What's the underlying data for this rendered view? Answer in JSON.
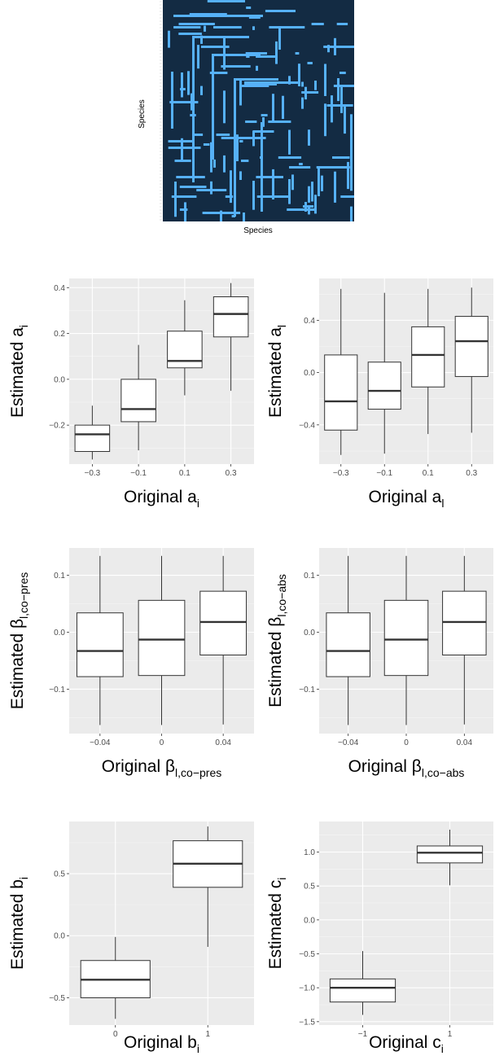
{
  "heatmap": {
    "xlabel": "Species",
    "ylabel": "Species",
    "background_color": "#132B43",
    "cell_color": "#56B1F7"
  },
  "chart_data": [
    {
      "type": "boxplot",
      "xlabel": "Original a",
      "xlabel_sub": "i",
      "ylabel": "Estimated a",
      "ylabel_sub": "i",
      "categories": [
        "−0.3",
        "−0.1",
        "0.1",
        "0.3"
      ],
      "ylim": [
        -0.37,
        0.44
      ],
      "yticks": [
        -0.2,
        0.0,
        0.2,
        0.4
      ],
      "ytick_labels": [
        "−0.2",
        "0.0",
        "0.2",
        "0.4"
      ],
      "boxes": [
        {
          "min": -0.35,
          "q1": -0.315,
          "median": -0.24,
          "q3": -0.2,
          "max": -0.115
        },
        {
          "min": -0.31,
          "q1": -0.185,
          "median": -0.13,
          "q3": 0.0,
          "max": 0.15
        },
        {
          "min": -0.07,
          "q1": 0.05,
          "median": 0.08,
          "q3": 0.21,
          "max": 0.345
        },
        {
          "min": -0.05,
          "q1": 0.185,
          "median": 0.285,
          "q3": 0.36,
          "max": 0.42
        }
      ]
    },
    {
      "type": "boxplot",
      "xlabel": "Original a",
      "xlabel_sub": "l",
      "ylabel": "Estimated a",
      "ylabel_sub": "l",
      "categories": [
        "−0.3",
        "−0.1",
        "0.1",
        "0.3"
      ],
      "ylim": [
        -0.7,
        0.72
      ],
      "yticks": [
        -0.4,
        0.0,
        0.4
      ],
      "ytick_labels": [
        "−0.4",
        "0.0",
        "0.4"
      ],
      "boxes": [
        {
          "min": -0.63,
          "q1": -0.44,
          "median": -0.22,
          "q3": 0.135,
          "max": 0.64
        },
        {
          "min": -0.62,
          "q1": -0.28,
          "median": -0.14,
          "q3": 0.08,
          "max": 0.61
        },
        {
          "min": -0.47,
          "q1": -0.11,
          "median": 0.135,
          "q3": 0.35,
          "max": 0.64
        },
        {
          "min": -0.46,
          "q1": -0.03,
          "median": 0.24,
          "q3": 0.43,
          "max": 0.65
        }
      ]
    },
    {
      "type": "boxplot",
      "xlabel": "Original β",
      "xlabel_sub": "l,co−pres",
      "ylabel": "Estimated β",
      "ylabel_sub": "l,co−pres",
      "categories": [
        "−0.04",
        "0",
        "0.04"
      ],
      "ylim": [
        -0.178,
        0.148
      ],
      "yticks": [
        -0.1,
        0.0,
        0.1
      ],
      "ytick_labels": [
        "−0.1",
        "0.0",
        "0.1"
      ],
      "boxes": [
        {
          "min": -0.163,
          "q1": -0.078,
          "median": -0.033,
          "q3": 0.034,
          "max": 0.134
        },
        {
          "min": -0.163,
          "q1": -0.076,
          "median": -0.013,
          "q3": 0.056,
          "max": 0.134
        },
        {
          "min": -0.162,
          "q1": -0.04,
          "median": 0.018,
          "q3": 0.072,
          "max": 0.134
        }
      ]
    },
    {
      "type": "boxplot",
      "xlabel": "Original β",
      "xlabel_sub": "l,co−abs",
      "ylabel": "Estimated β",
      "ylabel_sub": "l,co−abs",
      "categories": [
        "−0.04",
        "0",
        "0.04"
      ],
      "ylim": [
        -0.178,
        0.148
      ],
      "yticks": [
        -0.1,
        0.0,
        0.1
      ],
      "ytick_labels": [
        "−0.1",
        "0.0",
        "0.1"
      ],
      "boxes": [
        {
          "min": -0.163,
          "q1": -0.078,
          "median": -0.033,
          "q3": 0.034,
          "max": 0.134
        },
        {
          "min": -0.163,
          "q1": -0.076,
          "median": -0.013,
          "q3": 0.056,
          "max": 0.134
        },
        {
          "min": -0.162,
          "q1": -0.04,
          "median": 0.018,
          "q3": 0.072,
          "max": 0.134
        }
      ]
    },
    {
      "type": "boxplot",
      "xlabel": "Original b",
      "xlabel_sub": "i",
      "ylabel": "Estimated b",
      "ylabel_sub": "i",
      "categories": [
        "0",
        "1"
      ],
      "ylim": [
        -0.72,
        0.92
      ],
      "yticks": [
        -0.5,
        0.0,
        0.5
      ],
      "ytick_labels": [
        "−0.5",
        "0.0",
        "0.5"
      ],
      "boxes": [
        {
          "min": -0.67,
          "q1": -0.5,
          "median": -0.355,
          "q3": -0.2,
          "max": -0.01
        },
        {
          "min": -0.09,
          "q1": 0.39,
          "median": 0.58,
          "q3": 0.765,
          "max": 0.88
        }
      ]
    },
    {
      "type": "boxplot",
      "xlabel": "Original c",
      "xlabel_sub": "i",
      "ylabel": "Estimated c",
      "ylabel_sub": "i",
      "categories": [
        "−1",
        "1"
      ],
      "ylim": [
        -1.55,
        1.45
      ],
      "yticks": [
        -1.5,
        -1.0,
        -0.5,
        0.0,
        0.5,
        1.0
      ],
      "ytick_labels": [
        "−1.5",
        "−1.0",
        "−0.5",
        "0.0",
        "0.5",
        "1.0"
      ],
      "boxes": [
        {
          "min": -1.4,
          "q1": -1.21,
          "median": -1.0,
          "q3": -0.87,
          "max": -0.46
        },
        {
          "min": 0.51,
          "q1": 0.84,
          "median": 0.99,
          "q3": 1.09,
          "max": 1.33
        }
      ]
    }
  ]
}
